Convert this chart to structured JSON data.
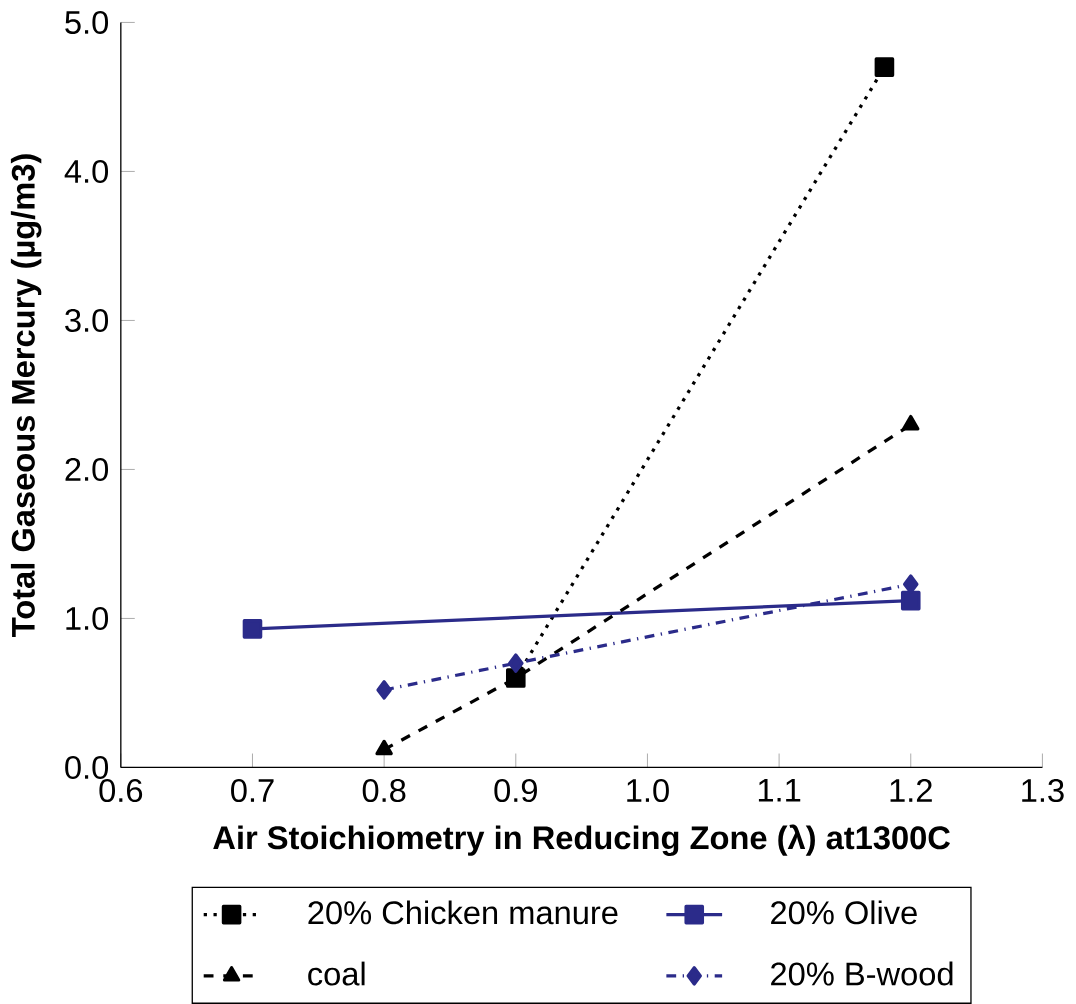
{
  "chart_data": {
    "type": "line",
    "xlabel": "Air Stoichiometry in Reducing Zone (λ) at1300C",
    "ylabel": "Total Gaseous Mercury (µg/m3)",
    "xlim": [
      0.6,
      1.3
    ],
    "ylim": [
      0,
      5
    ],
    "xticks": [
      0.6,
      0.7,
      0.8,
      0.9,
      {
        "value": 1,
        "label": "1.0"
      },
      1.1,
      1.2,
      1.3
    ],
    "yticks": [
      {
        "value": 0,
        "label": "0.0"
      },
      {
        "value": 1,
        "label": "1.0"
      },
      {
        "value": 2,
        "label": "2.0"
      },
      {
        "value": 3,
        "label": "3.0"
      },
      {
        "value": 4,
        "label": "4.0"
      },
      {
        "value": 5,
        "label": "5.0"
      }
    ],
    "grid": false,
    "legend": "bottom",
    "series": [
      {
        "name": "20% Chicken manure",
        "color": "#000000",
        "x": [
          0.9,
          1.18
        ],
        "values": [
          0.6,
          4.7
        ],
        "marker": "square",
        "line_style": "dotted"
      },
      {
        "name": "20% Olive",
        "color": "#2b2b8a",
        "x": [
          0.7,
          1.2
        ],
        "values": [
          0.93,
          1.12
        ],
        "marker": "square",
        "line_style": "solid"
      },
      {
        "name": "coal",
        "color": "#000000",
        "x": [
          0.8,
          0.9,
          1.2
        ],
        "values": [
          0.12,
          0.6,
          2.3
        ],
        "marker": "triangle",
        "line_style": "dashed"
      },
      {
        "name": "20% B-wood",
        "color": "#2b2b8a",
        "x": [
          0.8,
          0.9,
          1.2
        ],
        "values": [
          0.52,
          0.7,
          1.23
        ],
        "marker": "diamond",
        "line_style": "dashdot"
      }
    ]
  }
}
